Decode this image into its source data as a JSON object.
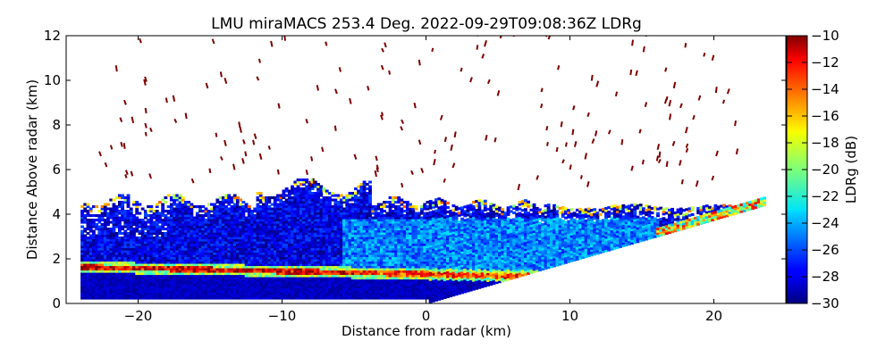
{
  "chart_data": {
    "type": "heatmap",
    "title": "LMU miraMACS 253.4 Deg. 2022-09-29T09:08:36Z  LDRg",
    "xlabel": "Distance from radar (km)",
    "ylabel": "Distance Above radar  (km)",
    "xlim": [
      -25,
      25
    ],
    "ylim": [
      0,
      12
    ],
    "xticks": [
      -20,
      -10,
      0,
      10,
      20
    ],
    "xtick_labels": [
      "−20",
      "−10",
      "0",
      "10",
      "20"
    ],
    "yticks": [
      0,
      2,
      4,
      6,
      8,
      10,
      12
    ],
    "ytick_labels": [
      "0",
      "2",
      "4",
      "6",
      "8",
      "10",
      "12"
    ],
    "colorbar": {
      "label": "LDRg (dB)",
      "range": [
        -30,
        -10
      ],
      "ticks": [
        -10,
        -12,
        -14,
        -16,
        -18,
        -20,
        -22,
        -24,
        -26,
        -28,
        -30
      ],
      "tick_labels": [
        "−10",
        "−12",
        "−14",
        "−16",
        "−18",
        "−20",
        "−22",
        "−24",
        "−26",
        "−28",
        "−30"
      ],
      "colormap": "jet"
    },
    "features": {
      "melting_layer_height_km": [
        1.6,
        1.2
      ],
      "cloud_top_left_km": 4.8,
      "cloud_top_right_km": 4.4,
      "scan_edge_right": [
        [
          0,
          0
        ],
        [
          23.5,
          4.4
        ]
      ],
      "data_x_extent_km": [
        -24,
        23.5
      ]
    },
    "colors": {
      "background": "#ffffff",
      "axes": "#000000"
    }
  }
}
